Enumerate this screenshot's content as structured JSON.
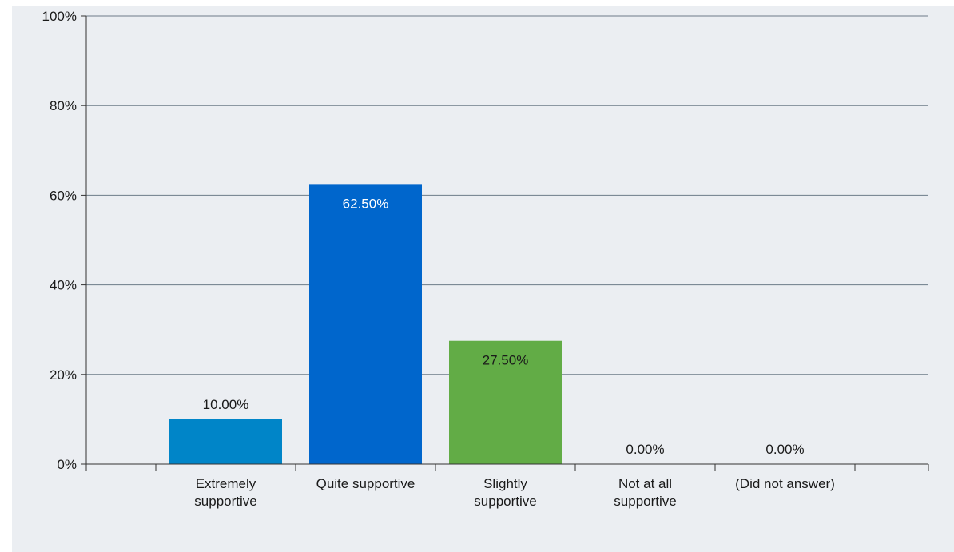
{
  "chart_data": {
    "type": "bar",
    "categories": [
      [
        "Extremely",
        "supportive"
      ],
      [
        "Quite supportive"
      ],
      [
        "Slightly",
        "supportive"
      ],
      [
        "Not at all",
        "supportive"
      ],
      [
        "(Did not answer)"
      ]
    ],
    "values": [
      10.0,
      62.5,
      27.5,
      0.0,
      0.0
    ],
    "data_labels": [
      "10.00%",
      "62.50%",
      "27.50%",
      "0.00%",
      "0.00%"
    ],
    "bar_colors": [
      "#0085c8",
      "#0066cc",
      "#62ac46",
      "#0085c8",
      "#0085c8"
    ],
    "label_colors": [
      "#1a1a1a",
      "#ffffff",
      "#1a1a1a",
      "#1a1a1a",
      "#1a1a1a"
    ],
    "yticks": [
      "0%",
      "20%",
      "40%",
      "60%",
      "80%",
      "100%"
    ],
    "ylim": [
      0,
      100
    ],
    "grid": true,
    "legend": "none",
    "title": "",
    "xlabel": "",
    "ylabel": ""
  }
}
